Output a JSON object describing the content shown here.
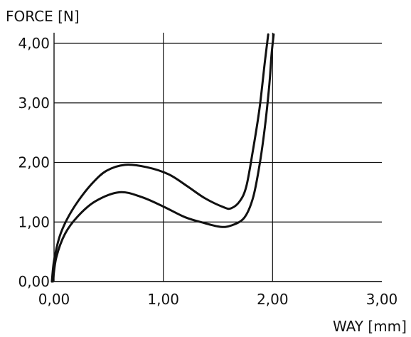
{
  "chart_data": {
    "type": "line",
    "title": "",
    "xlabel": "WAY [mm]",
    "ylabel": "FORCE [N]",
    "xlim": [
      0,
      3
    ],
    "ylim": [
      0,
      4
    ],
    "x_ticks": [
      0,
      1,
      2,
      3
    ],
    "y_ticks": [
      0,
      1,
      2,
      3,
      4
    ],
    "x_tick_labels": [
      "0,00",
      "1,00",
      "2,00",
      "3,00"
    ],
    "y_tick_labels": [
      "0,00",
      "1,00",
      "2,00",
      "3,00",
      "4,00"
    ],
    "grid": true,
    "series": [
      {
        "points": [
          [
            -0.02,
            0.0
          ],
          [
            0.0,
            0.35
          ],
          [
            0.05,
            0.75
          ],
          [
            0.12,
            1.05
          ],
          [
            0.22,
            1.35
          ],
          [
            0.35,
            1.65
          ],
          [
            0.48,
            1.86
          ],
          [
            0.65,
            1.96
          ],
          [
            0.85,
            1.92
          ],
          [
            1.05,
            1.8
          ],
          [
            1.22,
            1.6
          ],
          [
            1.38,
            1.4
          ],
          [
            1.55,
            1.25
          ],
          [
            1.62,
            1.23
          ],
          [
            1.7,
            1.35
          ],
          [
            1.76,
            1.6
          ],
          [
            1.82,
            2.2
          ],
          [
            1.88,
            2.9
          ],
          [
            1.93,
            3.7
          ],
          [
            1.96,
            4.15
          ]
        ]
      },
      {
        "points": [
          [
            -0.01,
            0.0
          ],
          [
            0.02,
            0.4
          ],
          [
            0.1,
            0.8
          ],
          [
            0.22,
            1.1
          ],
          [
            0.38,
            1.35
          ],
          [
            0.6,
            1.5
          ],
          [
            0.8,
            1.42
          ],
          [
            1.0,
            1.26
          ],
          [
            1.2,
            1.08
          ],
          [
            1.38,
            0.98
          ],
          [
            1.52,
            0.92
          ],
          [
            1.62,
            0.94
          ],
          [
            1.74,
            1.07
          ],
          [
            1.82,
            1.4
          ],
          [
            1.88,
            1.95
          ],
          [
            1.93,
            2.6
          ],
          [
            1.97,
            3.3
          ],
          [
            1.99,
            3.8
          ],
          [
            2.01,
            4.15
          ]
        ]
      }
    ]
  }
}
